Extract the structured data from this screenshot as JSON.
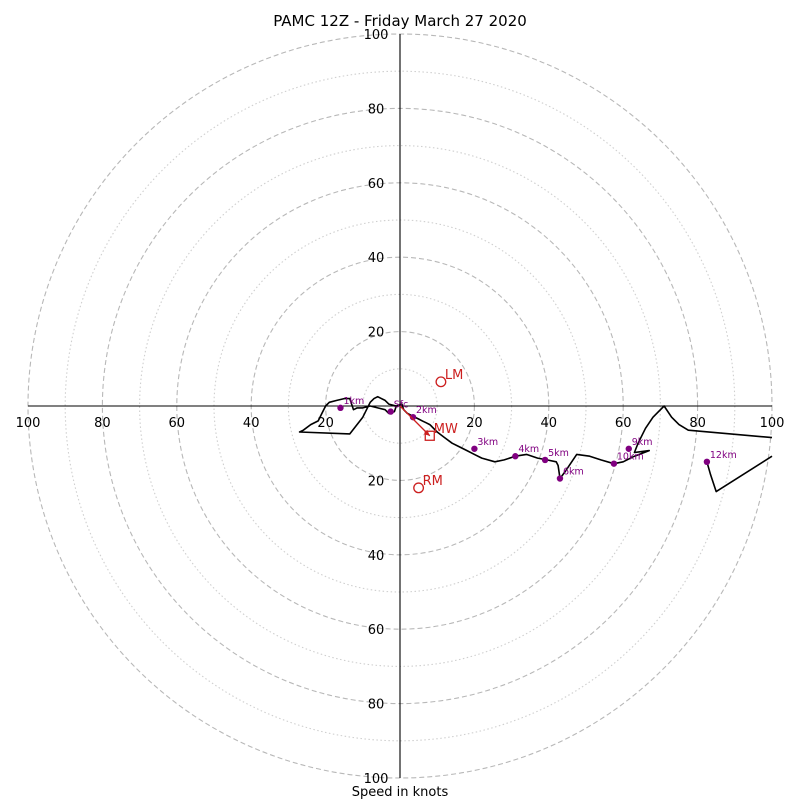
{
  "chart_data": {
    "type": "hodograph",
    "title": "PAMC 12Z - Friday March 27 2020",
    "xlabel": "Speed in knots",
    "ring_max": 100,
    "ring_major_step": 20,
    "ring_minor_step": 10,
    "grid": true,
    "ticks": {
      "left": [
        "100",
        "80",
        "60",
        "40",
        "20"
      ],
      "right": [
        "20",
        "40",
        "60",
        "80",
        "100"
      ],
      "top": [
        "20",
        "40",
        "60",
        "80",
        "100"
      ],
      "bottom": [
        "20",
        "40",
        "60",
        "80",
        "100"
      ]
    },
    "hodograph_line": {
      "color": "#000000",
      "points": [
        [
          -1,
          0
        ],
        [
          -1.5,
          -1.5
        ],
        [
          -3,
          -2
        ],
        [
          -4,
          -1
        ],
        [
          -6,
          -0.5
        ],
        [
          -8,
          0
        ],
        [
          -10,
          -0.5
        ],
        [
          -11.5,
          -0.5
        ],
        [
          -12.5,
          -1
        ],
        [
          -13.5,
          2
        ],
        [
          -15,
          2
        ],
        [
          -17,
          1.5
        ],
        [
          -19,
          1
        ],
        [
          -20,
          0
        ],
        [
          -21,
          -2
        ],
        [
          -22,
          -4
        ],
        [
          -24,
          -5
        ],
        [
          -26,
          -6.5
        ],
        [
          -27,
          -7
        ],
        [
          -13.5,
          -7.5
        ],
        [
          -10,
          -3
        ],
        [
          -8,
          1
        ],
        [
          -7,
          2
        ],
        [
          -6,
          2.5
        ],
        [
          -4,
          1.5
        ],
        [
          -3,
          0.5
        ],
        [
          -1,
          0
        ],
        [
          0.5,
          0.5
        ],
        [
          1,
          -1
        ],
        [
          2,
          -2
        ],
        [
          3,
          -2.5
        ],
        [
          4,
          -3
        ],
        [
          5,
          -3.5
        ],
        [
          6,
          -4
        ],
        [
          7,
          -4.5
        ],
        [
          8,
          -5
        ],
        [
          10,
          -7
        ],
        [
          12,
          -8.5
        ],
        [
          14,
          -10
        ],
        [
          16,
          -11
        ],
        [
          18,
          -12
        ],
        [
          20,
          -13
        ],
        [
          22,
          -14
        ],
        [
          25.5,
          -15
        ],
        [
          28,
          -14.5
        ],
        [
          31,
          -13.5
        ],
        [
          34,
          -13
        ],
        [
          37,
          -14
        ],
        [
          39.5,
          -14.5
        ],
        [
          42,
          -15
        ],
        [
          42.5,
          -16
        ],
        [
          43,
          -19.5
        ],
        [
          44.5,
          -17.5
        ],
        [
          47.5,
          -13
        ],
        [
          51,
          -13.5
        ],
        [
          54,
          -14.5
        ],
        [
          57.5,
          -15.5
        ],
        [
          60,
          -15
        ],
        [
          63,
          -13.5
        ],
        [
          67,
          -12
        ],
        [
          63,
          -12.5
        ],
        [
          64,
          -10
        ],
        [
          66,
          -6
        ],
        [
          68,
          -3
        ],
        [
          71,
          0
        ],
        [
          73,
          -3
        ],
        [
          75,
          -5
        ],
        [
          77.5,
          -6.5
        ],
        [
          100,
          -8.5
        ]
      ],
      "tail": [
        [
          100,
          -13.5
        ],
        [
          85,
          -23
        ],
        [
          83.5,
          -18.5
        ],
        [
          82.5,
          -15
        ]
      ]
    },
    "height_markers": {
      "color": "#800080",
      "points": [
        {
          "label": "Sfc",
          "u": -2.5,
          "v": -1.5
        },
        {
          "label": "1km",
          "u": -16,
          "v": -0.5
        },
        {
          "label": "2km",
          "u": 3.5,
          "v": -3
        },
        {
          "label": "3km",
          "u": 20,
          "v": -11.5
        },
        {
          "label": "4km",
          "u": 31,
          "v": -13.5
        },
        {
          "label": "5km",
          "u": 39,
          "v": -14.5
        },
        {
          "label": "6km",
          "u": 43,
          "v": -19.5
        },
        {
          "label": "9km",
          "u": 61.5,
          "v": -11.5
        },
        {
          "label": "10km",
          "u": 57.5,
          "v": -15.5
        },
        {
          "label": "12km",
          "u": 82.5,
          "v": -15
        }
      ]
    },
    "motion_markers": {
      "color": "#cc1f1f",
      "points": [
        {
          "label": "LM",
          "u": 11,
          "v": 6.5,
          "marker": "circle"
        },
        {
          "label": "MW",
          "u": 8,
          "v": -8,
          "marker": "square"
        },
        {
          "label": "RM",
          "u": 5,
          "v": -22,
          "marker": "circle"
        }
      ],
      "arrow": {
        "from": [
          0,
          0
        ],
        "to": [
          8,
          -8
        ]
      }
    }
  }
}
